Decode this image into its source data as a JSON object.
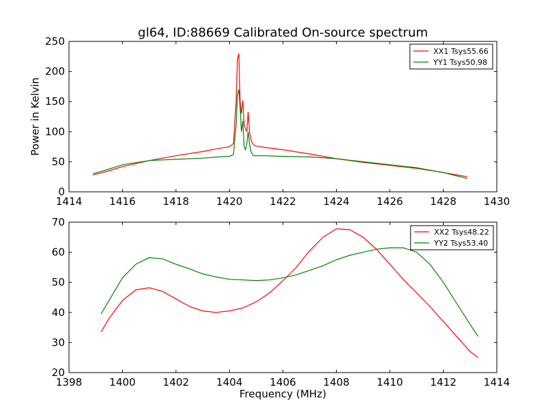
{
  "chart_data": [
    {
      "type": "line",
      "title": "gl64, ID:88669 Calibrated On-source spectrum",
      "xlabel": "",
      "ylabel": "Power in Kelvin",
      "xlim": [
        1414,
        1430
      ],
      "ylim": [
        0,
        250
      ],
      "xticks": [
        1414,
        1416,
        1418,
        1420,
        1422,
        1424,
        1426,
        1428,
        1430
      ],
      "yticks": [
        0,
        50,
        100,
        150,
        200,
        250
      ],
      "legend": "top-right",
      "grid": false,
      "series": [
        {
          "name": "XX1 Tsys55.66",
          "color": "#ff0000",
          "x": [
            1414.9,
            1415.5,
            1416,
            1417,
            1418,
            1419,
            1419.6,
            1420.0,
            1420.15,
            1420.25,
            1420.3,
            1420.35,
            1420.4,
            1420.45,
            1420.5,
            1420.55,
            1420.6,
            1420.65,
            1420.7,
            1420.75,
            1420.8,
            1420.85,
            1420.9,
            1421.0,
            1421.3,
            1422,
            1423,
            1424,
            1425,
            1426,
            1427,
            1428,
            1428.9
          ],
          "y": [
            28,
            35,
            42,
            52,
            60,
            67,
            72,
            75,
            80,
            150,
            220,
            230,
            150,
            130,
            152,
            112,
            105,
            100,
            133,
            100,
            88,
            82,
            78,
            76,
            74,
            70,
            63,
            55,
            49,
            44,
            39,
            32,
            25
          ]
        },
        {
          "name": "YY1 Tsys50.98",
          "color": "#008000",
          "x": [
            1414.9,
            1415.5,
            1416,
            1417,
            1418,
            1419,
            1419.6,
            1420.0,
            1420.15,
            1420.25,
            1420.3,
            1420.35,
            1420.4,
            1420.45,
            1420.5,
            1420.55,
            1420.6,
            1420.65,
            1420.7,
            1420.75,
            1420.8,
            1420.85,
            1420.9,
            1421.0,
            1421.3,
            1422,
            1423,
            1424,
            1425,
            1426,
            1427,
            1428,
            1428.9
          ],
          "y": [
            30,
            38,
            45,
            52,
            54,
            56,
            58,
            59,
            62,
            110,
            160,
            170,
            140,
            100,
            118,
            75,
            70,
            80,
            100,
            80,
            68,
            63,
            60,
            60,
            60,
            59,
            58,
            55,
            50,
            45,
            40,
            32,
            22
          ]
        }
      ]
    },
    {
      "type": "line",
      "title": "",
      "xlabel": "Frequency (MHz)",
      "ylabel": "",
      "xlim": [
        1398,
        1414
      ],
      "ylim": [
        20,
        70
      ],
      "xticks": [
        1398,
        1400,
        1402,
        1404,
        1406,
        1408,
        1410,
        1412,
        1414
      ],
      "yticks": [
        20,
        30,
        40,
        50,
        60,
        70
      ],
      "legend": "top-right",
      "grid": false,
      "series": [
        {
          "name": "XX2 Tsys48.22",
          "color": "#ff0000",
          "x": [
            1399.2,
            1399.5,
            1400,
            1400.5,
            1401,
            1401.5,
            1402,
            1402.5,
            1403,
            1403.5,
            1404,
            1404.5,
            1405,
            1405.5,
            1406,
            1406.5,
            1407,
            1407.5,
            1408,
            1408.5,
            1409,
            1409.5,
            1410,
            1410.5,
            1411,
            1411.5,
            1412,
            1412.5,
            1413,
            1413.3
          ],
          "y": [
            33.5,
            38,
            44,
            47.5,
            48.2,
            47,
            44.5,
            42,
            40.5,
            40,
            40.5,
            41.5,
            43.5,
            46.5,
            50.5,
            55,
            60.5,
            65,
            67.8,
            67.5,
            65,
            61,
            56,
            51,
            46.5,
            42,
            37,
            32,
            27,
            25
          ]
        },
        {
          "name": "YY2 Tsys53.40",
          "color": "#008000",
          "x": [
            1399.2,
            1399.5,
            1400,
            1400.5,
            1401,
            1401.5,
            1402,
            1402.5,
            1403,
            1403.5,
            1404,
            1404.5,
            1405,
            1405.5,
            1406,
            1406.5,
            1407,
            1407.5,
            1408,
            1408.5,
            1409,
            1409.5,
            1410,
            1410.5,
            1411,
            1411.5,
            1412,
            1412.5,
            1413,
            1413.3
          ],
          "y": [
            39.5,
            44,
            51.5,
            56,
            58.2,
            57.8,
            56,
            54.5,
            52.8,
            51.8,
            51,
            50.8,
            50.6,
            50.8,
            51.5,
            52.5,
            54,
            55.5,
            57.5,
            59,
            60,
            61,
            61.5,
            61.5,
            60,
            56,
            50,
            43,
            36,
            32
          ]
        }
      ]
    }
  ]
}
